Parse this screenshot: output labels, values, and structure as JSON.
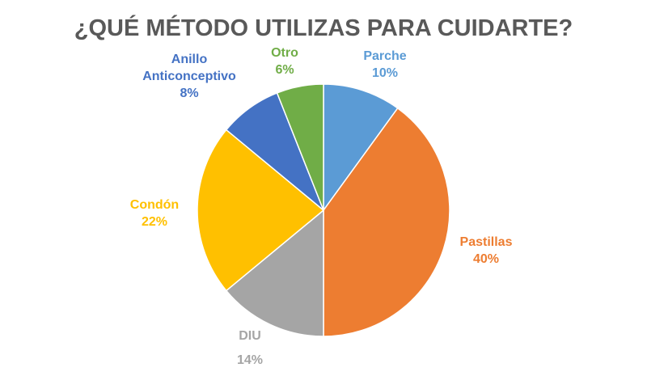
{
  "chart_data": {
    "type": "pie",
    "title": "¿QUÉ MÉTODO UTILIZAS PARA CUIDARTE?",
    "slices": [
      {
        "label": "Parche",
        "value": 10,
        "value_label": "10%",
        "color": "#5B9BD5"
      },
      {
        "label": "Pastillas",
        "value": 40,
        "value_label": "40%",
        "color": "#ED7D31"
      },
      {
        "label": "DIU",
        "value": 14,
        "value_label": "14%",
        "color": "#A5A5A5"
      },
      {
        "label": "Condón",
        "value": 22,
        "value_label": "22%",
        "color": "#FFC000"
      },
      {
        "label": "Anillo Anticonceptivo",
        "label_lines": [
          "Anillo",
          "Anticonceptivo"
        ],
        "value": 8,
        "value_label": "8%",
        "color": "#4472C4"
      },
      {
        "label": "Otro",
        "value": 6,
        "value_label": "6%",
        "color": "#70AD47"
      }
    ],
    "legend": "none"
  }
}
